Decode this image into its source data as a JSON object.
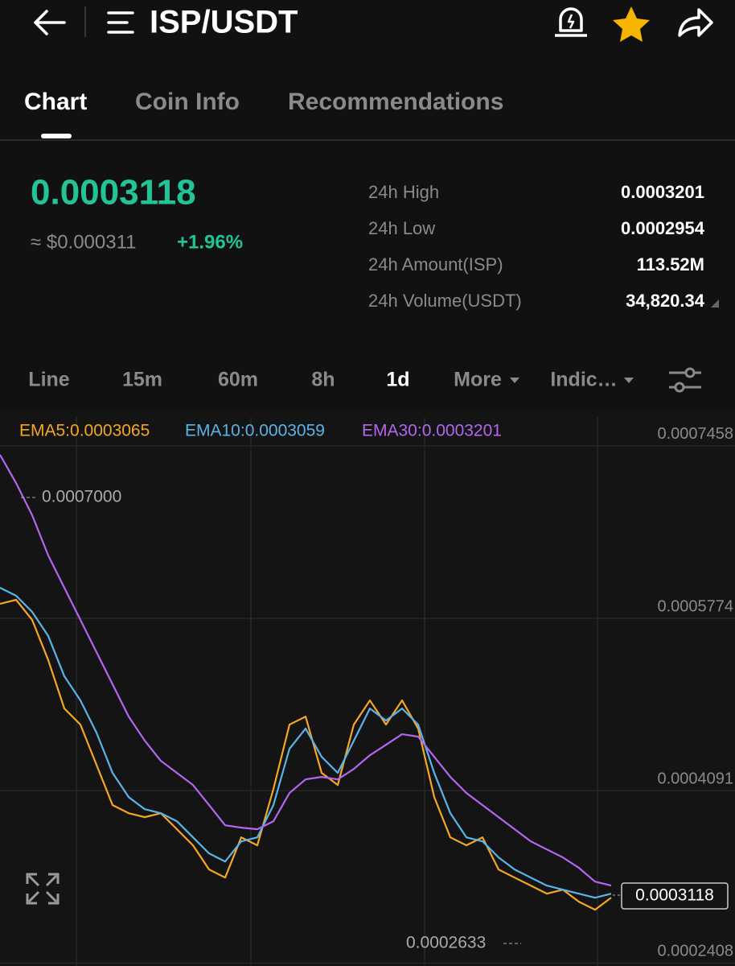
{
  "header": {
    "title": "ISP/USDT"
  },
  "tabs": [
    "Chart",
    "Coin Info",
    "Recommendations"
  ],
  "price": {
    "last": "0.0003118",
    "fiat": "≈ $0.000311",
    "change": "+1.96%"
  },
  "stats": [
    {
      "label": "24h High",
      "value": "0.0003201"
    },
    {
      "label": "24h Low",
      "value": "0.0002954"
    },
    {
      "label": "24h Amount(ISP)",
      "value": "113.52M"
    },
    {
      "label": "24h Volume(USDT)",
      "value": "34,820.34"
    }
  ],
  "intervals": [
    "Line",
    "15m",
    "60m",
    "8h",
    "1d",
    "More",
    "Indic…"
  ],
  "chart_data": {
    "type": "line",
    "ylim": [
      0.000238,
      0.000774
    ],
    "yticks": [
      0.0007458,
      0.0005774,
      0.0004091,
      0.0002408
    ],
    "grid": true,
    "annotations": {
      "high": "0.0007000",
      "low": "0.0002633",
      "last": "0.0003118"
    },
    "series": [
      {
        "name": "EMA5:0.0003065",
        "color": "#f5a623",
        "values": [
          0.0005916,
          0.0005955,
          0.0005759,
          0.0005366,
          0.0004894,
          0.0004737,
          0.0004344,
          0.0003951,
          0.0003872,
          0.0003833,
          0.0003872,
          0.0003715,
          0.0003558,
          0.0003322,
          0.0003243,
          0.0003636,
          0.0003558,
          0.0004108,
          0.0004737,
          0.0004815,
          0.0004265,
          0.0004147,
          0.0004737,
          0.0004973,
          0.0004737,
          0.0004973,
          0.0004698,
          0.0004029,
          0.0003636,
          0.0003558,
          0.0003636,
          0.0003322,
          0.0003243,
          0.0003165,
          0.0003086,
          0.0003125,
          0.0003007,
          0.0002929,
          0.0003047
        ]
      },
      {
        "name": "EMA10:0.0003059",
        "color": "#5ab4e8",
        "values": [
          0.0006073,
          0.0005995,
          0.0005837,
          0.0005602,
          0.0005209,
          0.0004973,
          0.0004658,
          0.0004265,
          0.0004029,
          0.0003911,
          0.0003872,
          0.0003793,
          0.0003636,
          0.0003479,
          0.00034,
          0.0003597,
          0.0003636,
          0.0003951,
          0.0004501,
          0.0004698,
          0.0004422,
          0.0004265,
          0.000458,
          0.0004894,
          0.0004776,
          0.0004894,
          0.0004737,
          0.0004265,
          0.0003872,
          0.0003636,
          0.0003597,
          0.000344,
          0.0003322,
          0.0003243,
          0.0003165,
          0.0003125,
          0.0003086,
          0.0003047,
          0.0003086
        ]
      },
      {
        "name": "EMA30:0.0003201",
        "color": "#b565f0",
        "values": [
          0.0007371,
          0.0007095,
          0.0006781,
          0.0006388,
          0.0006073,
          0.0005759,
          0.0005444,
          0.000513,
          0.0004815,
          0.000458,
          0.0004383,
          0.0004265,
          0.0004147,
          0.0003951,
          0.0003754,
          0.0003731,
          0.0003715,
          0.0003793,
          0.0004069,
          0.0004202,
          0.0004226,
          0.0004202,
          0.0004304,
          0.0004438,
          0.000454,
          0.0004643,
          0.0004619,
          0.0004422,
          0.0004226,
          0.0004069,
          0.0003951,
          0.0003833,
          0.0003715,
          0.0003597,
          0.0003518,
          0.000344,
          0.0003337,
          0.0003204,
          0.0003165
        ]
      }
    ]
  }
}
